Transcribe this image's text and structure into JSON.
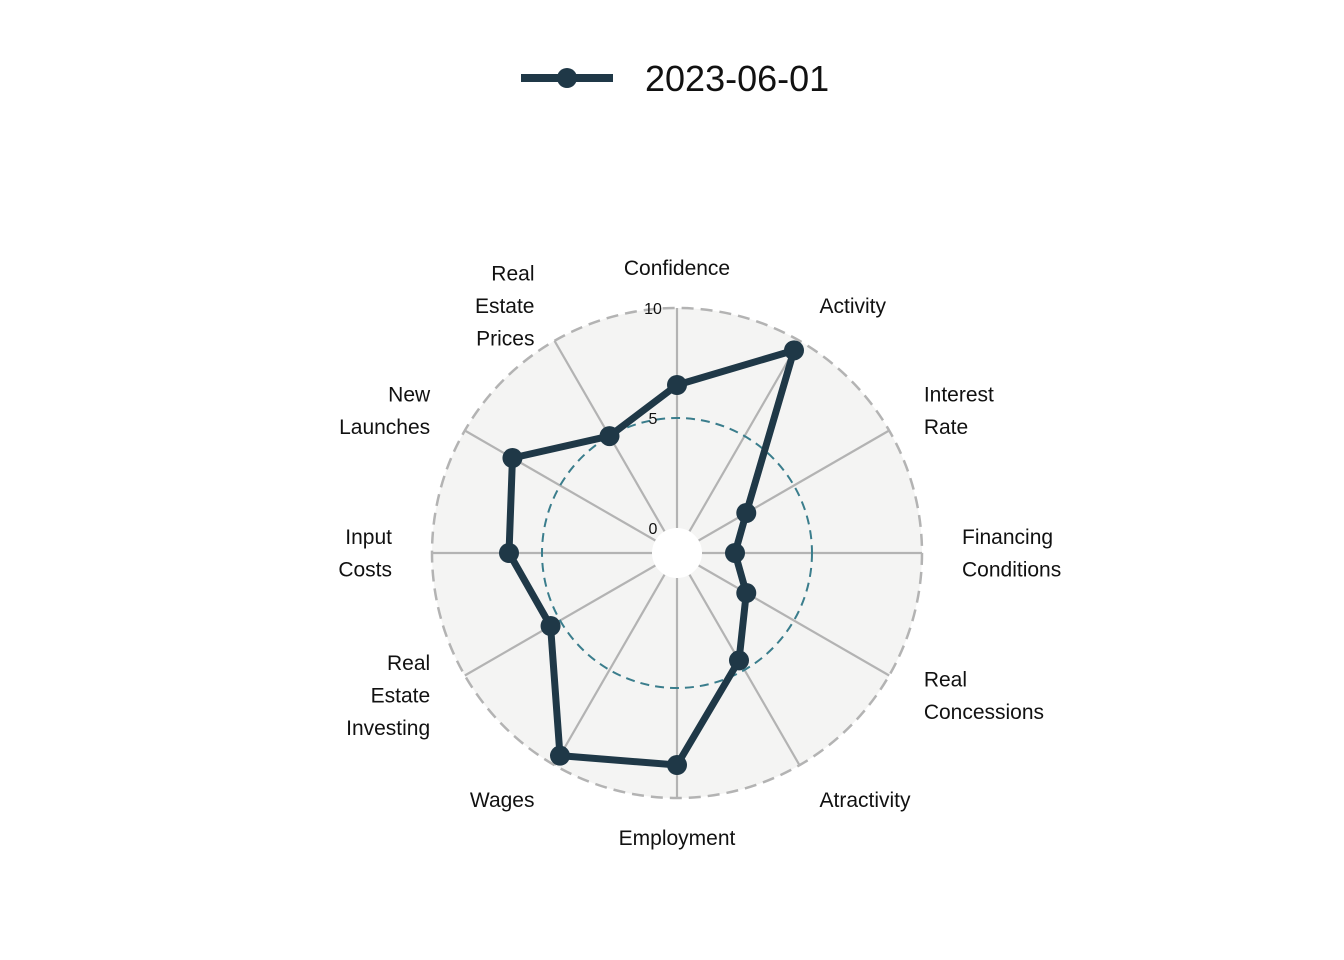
{
  "chart_data": {
    "type": "radar",
    "legend_position": "top",
    "series": [
      {
        "name": "2023-06-01",
        "color": "#1f3847",
        "values": [
          6.5,
          9.5,
          2.5,
          1.5,
          2.5,
          4.5,
          8.5,
          9.5,
          5.5,
          6.5,
          7.5,
          5.0
        ]
      }
    ],
    "axes": [
      [
        "Confidence"
      ],
      [
        "Activity"
      ],
      [
        "Interest",
        "Rate"
      ],
      [
        "Financing",
        "Conditions"
      ],
      [
        "Real",
        "Concessions"
      ],
      [
        "Atractivity"
      ],
      [
        "Employment"
      ],
      [
        "Wages"
      ],
      [
        "Real",
        "Estate",
        "Investing"
      ],
      [
        "Input",
        "Costs"
      ],
      [
        "New",
        "Launches"
      ],
      [
        "Real",
        "Estate",
        "Prices"
      ]
    ],
    "radial_ticks": [
      "0",
      "5",
      "10"
    ],
    "rlim": [
      0,
      10
    ],
    "reference_circle": 5,
    "reference_color": "#3a7d8c",
    "background_color": "#f4f4f3",
    "grid_color": "#b3b3b3"
  }
}
